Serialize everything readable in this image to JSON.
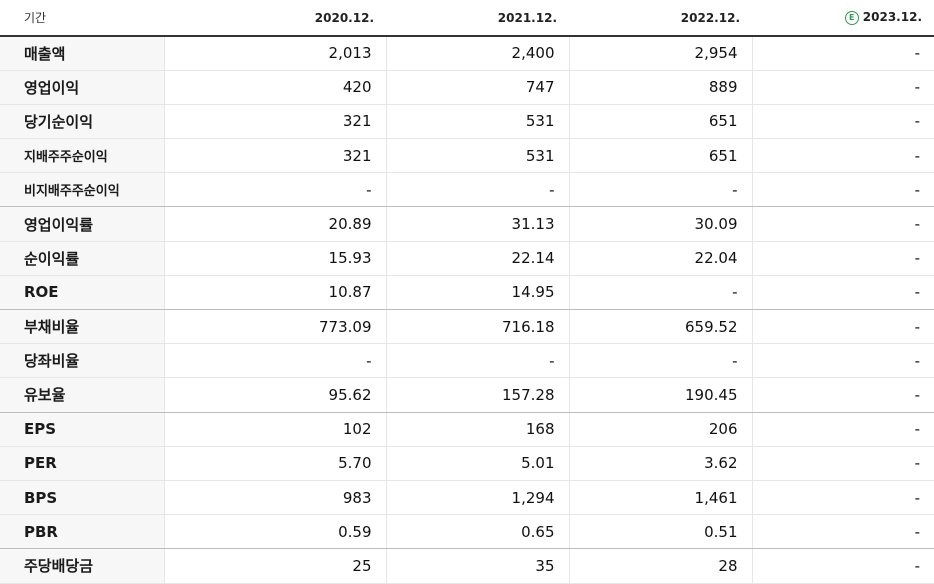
{
  "header": {
    "period_label": "기간",
    "columns": [
      "2020.12.",
      "2021.12.",
      "2022.12.",
      "2023.12."
    ],
    "estimate_badge": "E"
  },
  "rows": [
    {
      "label": "매출액",
      "values": [
        "2,013",
        "2,400",
        "2,954",
        "-"
      ]
    },
    {
      "label": "영업이익",
      "values": [
        "420",
        "747",
        "889",
        "-"
      ]
    },
    {
      "label": "당기순이익",
      "values": [
        "321",
        "531",
        "651",
        "-"
      ]
    },
    {
      "label": "지배주주순이익",
      "values": [
        "321",
        "531",
        "651",
        "-"
      ]
    },
    {
      "label": "비지배주주순이익",
      "values": [
        "-",
        "-",
        "-",
        "-"
      ]
    },
    {
      "label": "영업이익률",
      "values": [
        "20.89",
        "31.13",
        "30.09",
        "-"
      ]
    },
    {
      "label": "순이익률",
      "values": [
        "15.93",
        "22.14",
        "22.04",
        "-"
      ]
    },
    {
      "label": "ROE",
      "values": [
        "10.87",
        "14.95",
        "-",
        "-"
      ]
    },
    {
      "label": "부채비율",
      "values": [
        "773.09",
        "716.18",
        "659.52",
        "-"
      ]
    },
    {
      "label": "당좌비율",
      "values": [
        "-",
        "-",
        "-",
        "-"
      ]
    },
    {
      "label": "유보율",
      "values": [
        "95.62",
        "157.28",
        "190.45",
        "-"
      ]
    },
    {
      "label": "EPS",
      "values": [
        "102",
        "168",
        "206",
        "-"
      ]
    },
    {
      "label": "PER",
      "values": [
        "5.70",
        "5.01",
        "3.62",
        "-"
      ]
    },
    {
      "label": "BPS",
      "values": [
        "983",
        "1,294",
        "1,461",
        "-"
      ]
    },
    {
      "label": "PBR",
      "values": [
        "0.59",
        "0.65",
        "0.51",
        "-"
      ]
    },
    {
      "label": "주당배당금",
      "values": [
        "25",
        "35",
        "28",
        "-"
      ]
    }
  ]
}
